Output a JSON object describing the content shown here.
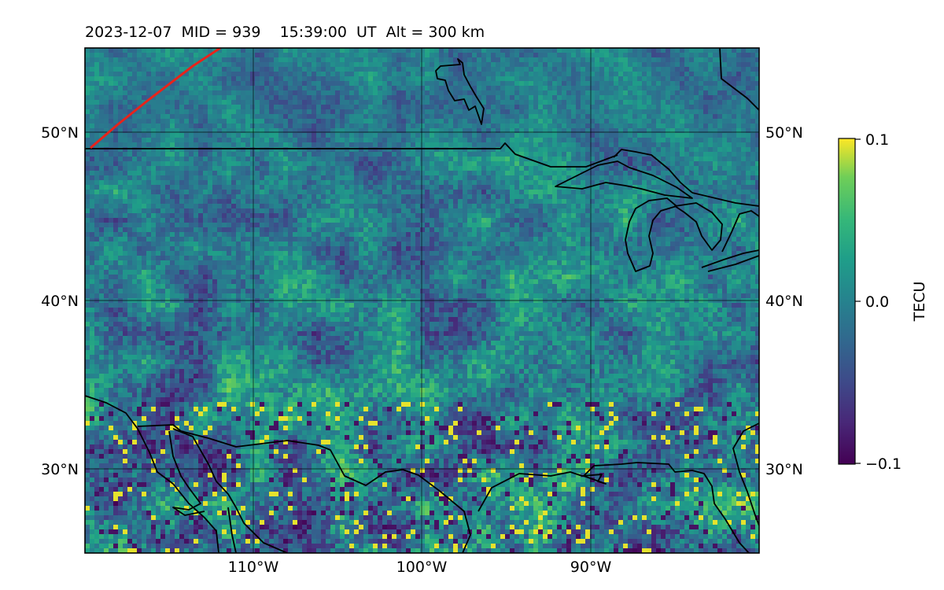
{
  "title": {
    "date": "2023-12-07",
    "mid": "MID = 939",
    "time": "15:39:00  UT",
    "alt": "Alt = 300 km"
  },
  "map": {
    "lon_range": [
      -120,
      -80
    ],
    "lat_range": [
      25,
      55
    ],
    "lat_ticks": [
      {
        "value": 30,
        "label": "30°N"
      },
      {
        "value": 40,
        "label": "40°N"
      },
      {
        "value": 50,
        "label": "50°N"
      }
    ],
    "lon_ticks": [
      {
        "value": -110,
        "label": "110°W"
      },
      {
        "value": -100,
        "label": "100°W"
      },
      {
        "value": -90,
        "label": "90°W"
      }
    ],
    "colormap": "viridis",
    "terminator_color": "#e8231b",
    "coastline_color": "#000000"
  },
  "colorbar": {
    "label": "TECU",
    "min": -0.1,
    "max": 0.1,
    "ticks": [
      {
        "value": 0.1,
        "label": "0.1"
      },
      {
        "value": 0.0,
        "label": "0.0"
      },
      {
        "value": -0.1,
        "label": "−0.1"
      }
    ]
  }
}
